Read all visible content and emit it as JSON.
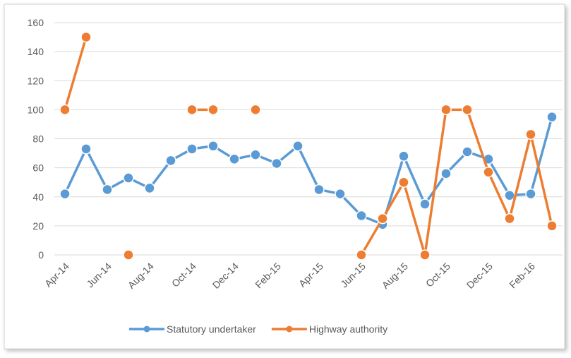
{
  "chart_data": {
    "type": "line",
    "categories": [
      "Apr-14",
      null,
      "Jun-14",
      null,
      "Aug-14",
      null,
      "Oct-14",
      null,
      "Dec-14",
      null,
      "Feb-15",
      null,
      "Apr-15",
      null,
      "Jun-15",
      null,
      "Aug-15",
      null,
      "Oct-15",
      null,
      "Dec-15",
      null,
      "Feb-16",
      null
    ],
    "series": [
      {
        "name": "Statutory undertaker",
        "color": "#5b9bd5",
        "values": [
          42,
          73,
          45,
          53,
          46,
          65,
          73,
          75,
          66,
          69,
          63,
          75,
          45,
          42,
          27,
          21,
          68,
          35,
          56,
          71,
          66,
          41,
          42,
          95
        ]
      },
      {
        "name": "Highway authority",
        "color": "#ed7d31",
        "values": [
          100,
          150,
          null,
          0,
          null,
          null,
          100,
          100,
          null,
          100,
          null,
          null,
          null,
          null,
          0,
          25,
          50,
          0,
          100,
          100,
          57,
          25,
          83,
          20
        ]
      }
    ],
    "ylim": [
      0,
      160
    ],
    "yticks": [
      0,
      20,
      40,
      60,
      80,
      100,
      120,
      140,
      160
    ],
    "grid": true,
    "legend": "bottom"
  }
}
